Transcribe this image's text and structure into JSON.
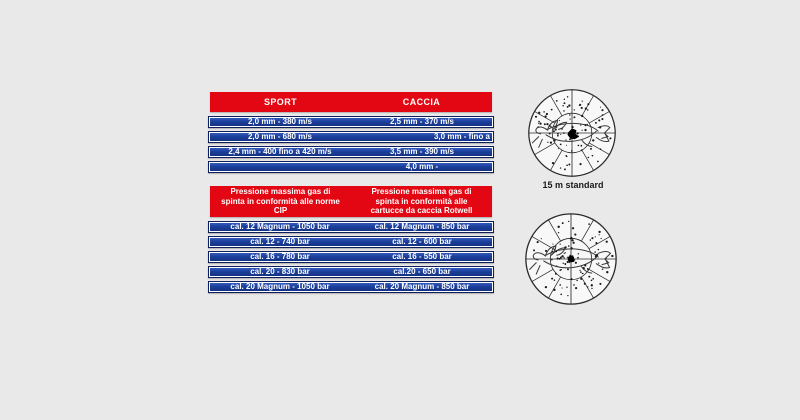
{
  "page": {
    "background": "#e9e9e9"
  },
  "colors": {
    "header_red": "#e30613",
    "bar_blue": "#1c3f9c",
    "bar_blue_light": "#3a63c4",
    "bar_blue_dark": "#12307f",
    "bar_border": "#0e1e5b",
    "text_white": "#ffffff",
    "target_ink": "#2b2b2b"
  },
  "velocity_table": {
    "headers": [
      "SPORT",
      "CACCIA"
    ],
    "rows": [
      {
        "left": "2,0 mm - 380 m/s",
        "right": "2,5 mm - 370 m/s"
      },
      {
        "left": "2,0 mm - 680 m/s",
        "right": "3,0 mm - fino a",
        "right_align": true
      },
      {
        "left": "2,4 mm - 400 fino a 420 m/s",
        "right": "3,5 mm - 390 m/s"
      },
      {
        "left": "",
        "right": "4,0 mm -"
      }
    ]
  },
  "pressure_table": {
    "headers": [
      "Pressione massima gas di spinta in conformità alle norme CIP",
      "Pressione massima gas di spinta in conformità alle cartucce da caccia Rotwell"
    ],
    "rows": [
      {
        "left": "cal. 12 Magnum - 1050 bar",
        "right": "cal. 12 Magnum - 850 bar"
      },
      {
        "left": "cal. 12 - 740 bar",
        "right": "cal. 12 - 600 bar"
      },
      {
        "left": "cal. 16 - 780 bar",
        "right": "cal. 16 - 550 bar"
      },
      {
        "left": "cal. 20 - 830 bar",
        "right": "cal.20 - 650 bar"
      },
      {
        "left": "cal. 20 Magnum - 1050 bar",
        "right": "cal. 20 Magnum - 850 bar"
      }
    ]
  },
  "targets": [
    {
      "caption": "15 m standard"
    },
    {
      "caption": ""
    }
  ]
}
